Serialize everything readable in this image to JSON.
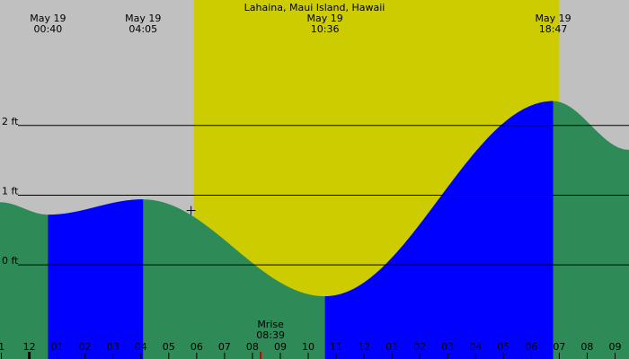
{
  "chart_data": {
    "type": "area",
    "title": "Lahaina, Maui Island, Hawaii",
    "xlabel": "",
    "ylabel": "",
    "x_unit": "hours",
    "xlim": [
      -1.05,
      21.5
    ],
    "ylim": [
      -1.35,
      3.8
    ],
    "y_ticks": [
      {
        "value": 0,
        "label": "0 ft"
      },
      {
        "value": 1,
        "label": "1 ft"
      },
      {
        "value": 2,
        "label": "2 ft"
      }
    ],
    "x_ticks": [
      {
        "value": -1,
        "label": "1"
      },
      {
        "value": 0,
        "label": "12"
      },
      {
        "value": 1,
        "label": "01"
      },
      {
        "value": 2,
        "label": "02"
      },
      {
        "value": 3,
        "label": "03"
      },
      {
        "value": 4,
        "label": "04"
      },
      {
        "value": 5,
        "label": "05"
      },
      {
        "value": 6,
        "label": "06"
      },
      {
        "value": 7,
        "label": "07"
      },
      {
        "value": 8,
        "label": "08"
      },
      {
        "value": 9,
        "label": "09"
      },
      {
        "value": 10,
        "label": "10"
      },
      {
        "value": 11,
        "label": "11"
      },
      {
        "value": 12,
        "label": "12"
      },
      {
        "value": 13,
        "label": "01"
      },
      {
        "value": 14,
        "label": "02"
      },
      {
        "value": 15,
        "label": "03"
      },
      {
        "value": 16,
        "label": "04"
      },
      {
        "value": 17,
        "label": "05"
      },
      {
        "value": 18,
        "label": "06"
      },
      {
        "value": 19,
        "label": "07"
      },
      {
        "value": 20,
        "label": "08"
      },
      {
        "value": 21,
        "label": "09"
      }
    ],
    "daylight": {
      "start": 5.9,
      "end": 19.0
    },
    "extremes": [
      {
        "x": 0.67,
        "y": 0.72,
        "date": "May 19",
        "time": "00:40"
      },
      {
        "x": 4.08,
        "y": 0.94,
        "date": "May 19",
        "time": "04:05"
      },
      {
        "x": 10.6,
        "y": -0.45,
        "date": "May 19",
        "time": "10:36"
      },
      {
        "x": 18.78,
        "y": 2.35,
        "date": "May 19",
        "time": "18:47"
      }
    ],
    "tide_before": {
      "x": -1.05,
      "y": 0.9
    },
    "tide_after": {
      "x": 21.5,
      "y": 1.65
    },
    "rising_bands": [
      [
        0.67,
        4.08
      ],
      [
        10.6,
        18.78
      ]
    ],
    "current_marker": {
      "x": 5.8,
      "y": 0.78
    },
    "moonrise": {
      "label": "Mrise",
      "time": "08:39",
      "x": 8.65
    },
    "colors": {
      "background": "#c0c0c0",
      "daylight": "#cccc00",
      "falling": "#2e8b57",
      "rising": "#0000ff",
      "moonrise": "#cc0000",
      "gridline": "#000000"
    }
  }
}
